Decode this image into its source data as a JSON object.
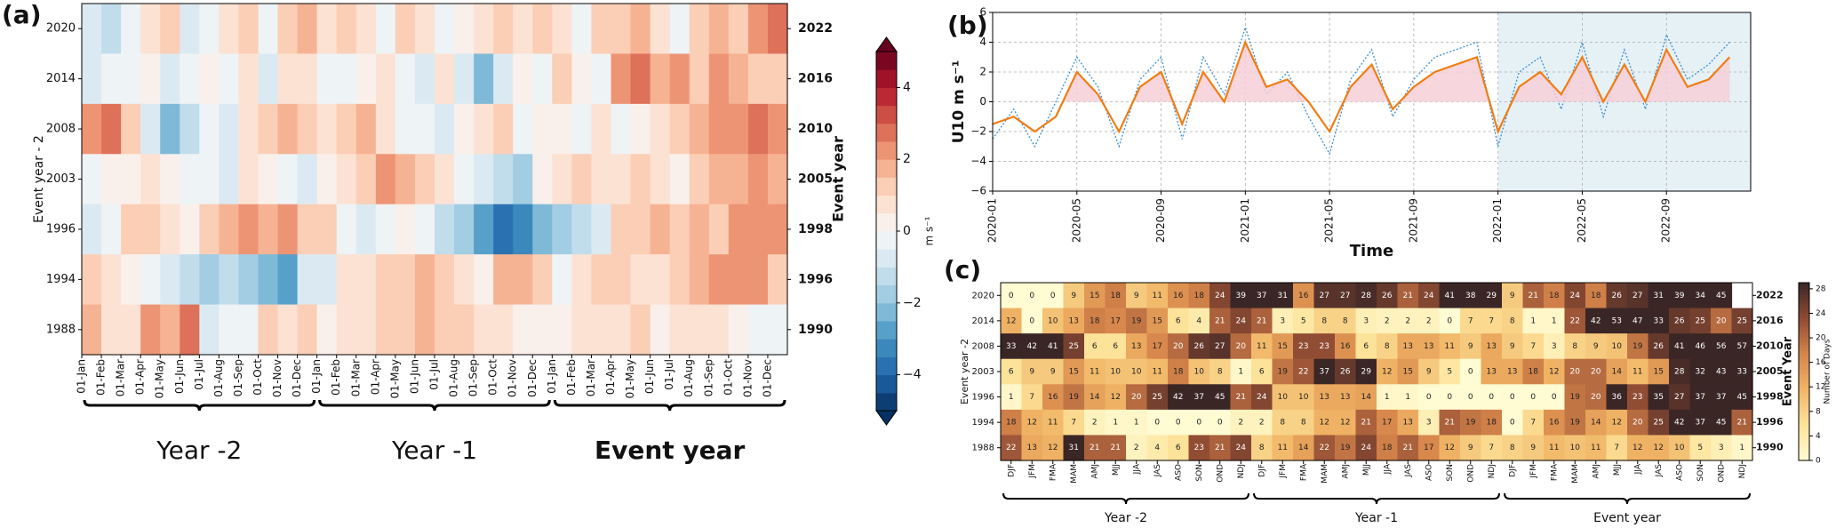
{
  "chart_data": [
    {
      "type": "heatmap",
      "label": "(a)",
      "rows": [
        "2020",
        "2014",
        "2008",
        "2003",
        "1996",
        "1994",
        "1988"
      ],
      "rows_right": [
        "2022",
        "2016",
        "2010",
        "2005",
        "1998",
        "1996",
        "1990"
      ],
      "ylabel": "Event year - 2",
      "ylabel_right": "Event year",
      "categories": [
        "01-Jan",
        "01-Feb",
        "01-Mar",
        "01-Apr",
        "01-May",
        "01-Jun",
        "01-Jul",
        "01-Aug",
        "01-Sep",
        "01-Oct",
        "01-Nov",
        "01-Dec",
        "01-Jan",
        "01-Feb",
        "01-Mar",
        "01-Apr",
        "01-May",
        "01-Jun",
        "01-Jul",
        "01-Aug",
        "01-Sep",
        "01-Oct",
        "01-Nov",
        "01-Dec",
        "01-Jan",
        "01-Feb",
        "01-Mar",
        "01-Apr",
        "01-May",
        "01-Jun",
        "01-Jul",
        "01-Aug",
        "01-Sep",
        "01-Oct",
        "01-Nov",
        "01-Dec"
      ],
      "groups": [
        "Year -2",
        "Year -1",
        "Event year"
      ],
      "values": [
        [
          -1,
          -1.5,
          -0.5,
          0.5,
          1,
          -1,
          -0.5,
          0.5,
          1,
          -0.5,
          1,
          1.5,
          0.5,
          1,
          0.5,
          -0.5,
          1,
          0.5,
          -0.5,
          0,
          0.5,
          1,
          0.5,
          1,
          0.5,
          -0.5,
          1,
          1,
          1.5,
          0.5,
          -0.5,
          1,
          1.5,
          1,
          2,
          2.5
        ],
        [
          -1,
          -0.5,
          -0.5,
          0,
          -1,
          -0.5,
          0,
          -0.5,
          0.5,
          -1,
          0.5,
          0.5,
          -0.5,
          -0.5,
          0,
          0.5,
          -0.5,
          -1,
          0.5,
          -1,
          -2.5,
          -1,
          0,
          -0.5,
          1,
          0,
          -0.5,
          2,
          2.5,
          1.5,
          2,
          1,
          2,
          1.5,
          1,
          1
        ],
        [
          2,
          2.5,
          1,
          -1,
          -2.5,
          -1.5,
          -0.5,
          -1,
          0.5,
          1,
          1.5,
          1,
          0.5,
          1,
          1.5,
          0.5,
          -0.5,
          -0.5,
          -1,
          0,
          0.5,
          1,
          -0.5,
          0,
          0,
          -0.5,
          0.5,
          -0.5,
          0,
          0.5,
          1,
          1.5,
          2,
          2,
          2.5,
          2
        ],
        [
          -0.5,
          0,
          0,
          0.5,
          0,
          -0.5,
          -0.5,
          -1,
          0.5,
          0,
          -0.5,
          -1,
          0,
          0.5,
          1,
          2,
          1.5,
          1,
          0.5,
          -0.5,
          -1,
          -1.5,
          -2,
          0,
          0.5,
          1,
          0.5,
          0.5,
          1,
          0.5,
          0,
          1,
          1.5,
          1.5,
          2,
          1.5
        ],
        [
          -1,
          -0.5,
          1,
          1,
          0.5,
          0,
          1,
          1.5,
          2,
          1.5,
          2,
          1,
          1,
          -0.5,
          -1,
          -0.5,
          0,
          -0.5,
          -1.5,
          -2,
          -3,
          -4,
          -3.5,
          -2.5,
          -2,
          -1.5,
          -1,
          1,
          1,
          1.5,
          1,
          1.5,
          1,
          2,
          2,
          2
        ],
        [
          1,
          0.5,
          0,
          -0.5,
          -1,
          -1.5,
          -2,
          -1.5,
          -2,
          -2.5,
          -3,
          -1,
          -1,
          0.5,
          0.5,
          1,
          1,
          1.5,
          1,
          0.5,
          0,
          1.5,
          1.5,
          1,
          -0.5,
          0.5,
          1,
          1,
          0.5,
          0.5,
          1,
          1.5,
          2,
          2,
          2,
          1
        ],
        [
          1.5,
          0.5,
          0.5,
          2,
          1.5,
          2.5,
          -1,
          -0.5,
          -0.5,
          1,
          0.5,
          1,
          0,
          0.5,
          0.5,
          1,
          1,
          1.5,
          1,
          1,
          0.5,
          0.5,
          0,
          0,
          0,
          0.5,
          0.5,
          0.5,
          1,
          0,
          0.5,
          0.5,
          0.5,
          0,
          -0.5,
          -0.5
        ]
      ],
      "cmap": "RdBu_r",
      "clim": [
        -5,
        5
      ],
      "extend": "both",
      "cbar_ticks": [
        {
          "value": -4,
          "label": "−4"
        },
        {
          "value": -2,
          "label": "−2"
        },
        0,
        2,
        4
      ],
      "cbar_label": "m s⁻¹"
    },
    {
      "type": "line",
      "label": "(b)",
      "x": [
        "2020-01",
        "2020-02",
        "2020-03",
        "2020-04",
        "2020-05",
        "2020-06",
        "2020-07",
        "2020-08",
        "2020-09",
        "2020-10",
        "2020-11",
        "2020-12",
        "2021-01",
        "2021-02",
        "2021-03",
        "2021-04",
        "2021-05",
        "2021-06",
        "2021-07",
        "2021-08",
        "2021-09",
        "2021-10",
        "2021-11",
        "2021-12",
        "2022-01",
        "2022-02",
        "2022-03",
        "2022-04",
        "2022-05",
        "2022-06",
        "2022-07",
        "2022-08",
        "2022-09",
        "2022-10",
        "2022-11",
        "2022-12"
      ],
      "series": [
        {
          "color": "#3a8fd0",
          "style": "dotted",
          "values": [
            -2.5,
            -0.5,
            -3,
            0,
            3,
            1,
            -3,
            1.5,
            3,
            -2.5,
            3,
            0.5,
            5,
            0.5,
            2,
            -1,
            -3.5,
            1.5,
            3.5,
            -1,
            1.5,
            3,
            3.5,
            4,
            -3,
            2,
            3,
            -0.5,
            4,
            -1,
            3.5,
            -0.5,
            4.5,
            1.5,
            2.5,
            4
          ]
        },
        {
          "color": "#f07d12",
          "style": "solid",
          "fill_positive": "#f6cfd8",
          "values": [
            -1.5,
            -1,
            -2,
            -1,
            2,
            0.5,
            -2,
            1,
            2,
            -1.5,
            2,
            0,
            4,
            1,
            1.5,
            0,
            -2,
            1,
            2.5,
            -0.5,
            1,
            2,
            2.5,
            3,
            -2,
            1,
            2,
            0.5,
            3,
            0,
            2.5,
            0,
            3.5,
            1,
            1.5,
            3
          ]
        }
      ],
      "xticks": [
        "2020-01",
        "2020-05",
        "2020-09",
        "2021-01",
        "2021-05",
        "2021-09",
        "2022-01",
        "2022-05",
        "2022-09"
      ],
      "ylim": [
        -6,
        6
      ],
      "yticks": [
        {
          "value": -6,
          "label": "−6"
        },
        {
          "value": -4,
          "label": "−4"
        },
        {
          "value": -2,
          "label": "−2"
        },
        0,
        2,
        4,
        6
      ],
      "ylabel": "U10 m s⁻¹",
      "xlabel": "Time",
      "grid": true,
      "highlight_from": "2022-01",
      "highlight_color": "#e6f1f6"
    },
    {
      "type": "heatmap",
      "label": "(c)",
      "show_values": true,
      "rows": [
        "2020",
        "2014",
        "2008",
        "2003",
        "1996",
        "1994",
        "1988"
      ],
      "rows_right": [
        "2022",
        "2016",
        "2010",
        "2005",
        "1998",
        "1996",
        "1990"
      ],
      "ylabel": "Event year -2",
      "ylabel_right": "Event Year",
      "categories": [
        "DJF",
        "JFM",
        "FMA",
        "MAM",
        "AMJ",
        "MJJ",
        "JJA",
        "JAS",
        "ASO",
        "SON",
        "OND",
        "NDJ",
        "DJF",
        "JFM",
        "FMA",
        "MAM",
        "AMJ",
        "MJJ",
        "JJA",
        "JAS",
        "ASO",
        "SON",
        "OND",
        "NDJ",
        "DJF",
        "JFM",
        "FMA",
        "MAM",
        "AMJ",
        "MJJ",
        "JJA",
        "JAS",
        "ASO",
        "SON",
        "OND",
        "NDJ"
      ],
      "groups": [
        "Year -2",
        "Year -1",
        "Event year"
      ],
      "values": [
        [
          0,
          0,
          0,
          9,
          15,
          18,
          9,
          11,
          16,
          18,
          24,
          39,
          37,
          31,
          16,
          27,
          27,
          28,
          26,
          21,
          24,
          41,
          38,
          29,
          9,
          21,
          18,
          24,
          18,
          26,
          27,
          31,
          39,
          34,
          45,
          null
        ],
        [
          12,
          0,
          10,
          13,
          18,
          17,
          19,
          15,
          6,
          4,
          21,
          24,
          21,
          3,
          5,
          8,
          8,
          3,
          2,
          2,
          2,
          0,
          7,
          7,
          8,
          1,
          1,
          22,
          42,
          53,
          47,
          33,
          26,
          25,
          20,
          25
        ],
        [
          33,
          42,
          41,
          25,
          6,
          6,
          13,
          17,
          20,
          26,
          27,
          20,
          11,
          15,
          23,
          23,
          16,
          6,
          8,
          13,
          13,
          11,
          9,
          13,
          9,
          7,
          3,
          8,
          9,
          10,
          19,
          26,
          41,
          46,
          56,
          57
        ],
        [
          6,
          9,
          9,
          15,
          11,
          10,
          10,
          11,
          18,
          10,
          8,
          1,
          6,
          19,
          22,
          37,
          26,
          29,
          12,
          15,
          9,
          5,
          0,
          13,
          13,
          18,
          12,
          20,
          20,
          14,
          11,
          15,
          28,
          32,
          43,
          33
        ],
        [
          1,
          7,
          16,
          19,
          14,
          12,
          20,
          25,
          42,
          37,
          45,
          21,
          24,
          10,
          10,
          13,
          13,
          14,
          1,
          1,
          0,
          0,
          0,
          0,
          0,
          0,
          0,
          19,
          20,
          36,
          23,
          35,
          27,
          37,
          37,
          45
        ],
        [
          18,
          12,
          11,
          7,
          2,
          1,
          1,
          0,
          0,
          0,
          0,
          2,
          2,
          8,
          8,
          12,
          12,
          21,
          17,
          13,
          3,
          21,
          19,
          18,
          0,
          7,
          16,
          19,
          14,
          12,
          20,
          25,
          42,
          37,
          45,
          21
        ],
        [
          22,
          13,
          12,
          31,
          21,
          21,
          2,
          4,
          6,
          23,
          21,
          24,
          8,
          11,
          14,
          22,
          19,
          24,
          18,
          21,
          17,
          12,
          9,
          7,
          8,
          9,
          11,
          10,
          11,
          7,
          12,
          12,
          10,
          5,
          3,
          1
        ]
      ],
      "cmap": "YlOrBr",
      "clim": [
        0,
        29
      ],
      "cbar_ticks": [
        0,
        4,
        8,
        12,
        16,
        20,
        24,
        28
      ],
      "cbar_label": "Number of Days"
    }
  ]
}
